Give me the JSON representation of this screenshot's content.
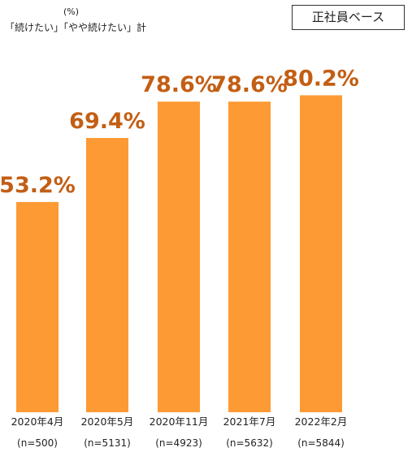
{
  "header": {
    "unit": "(%)",
    "subtitle": "「続けたい」「やや続けたい」計",
    "badge": "正社員ベース"
  },
  "colors": {
    "bar": "#FD9A34",
    "value_label": "#C35E14"
  },
  "chart_data": {
    "type": "bar",
    "categories": [
      "2020年4月",
      "2020年5月",
      "2020年11月",
      "2021年7月",
      "2022年2月"
    ],
    "sample_sizes": [
      "(n=500)",
      "(n=5131)",
      "(n=4923)",
      "(n=5632)",
      "(n=5844)"
    ],
    "values": [
      53.2,
      69.4,
      78.6,
      78.6,
      80.2
    ],
    "value_labels": [
      "53.2%",
      "69.4%",
      "78.6%",
      "78.6%",
      "80.2%"
    ],
    "ylim": [
      0,
      100
    ],
    "grid": false
  }
}
